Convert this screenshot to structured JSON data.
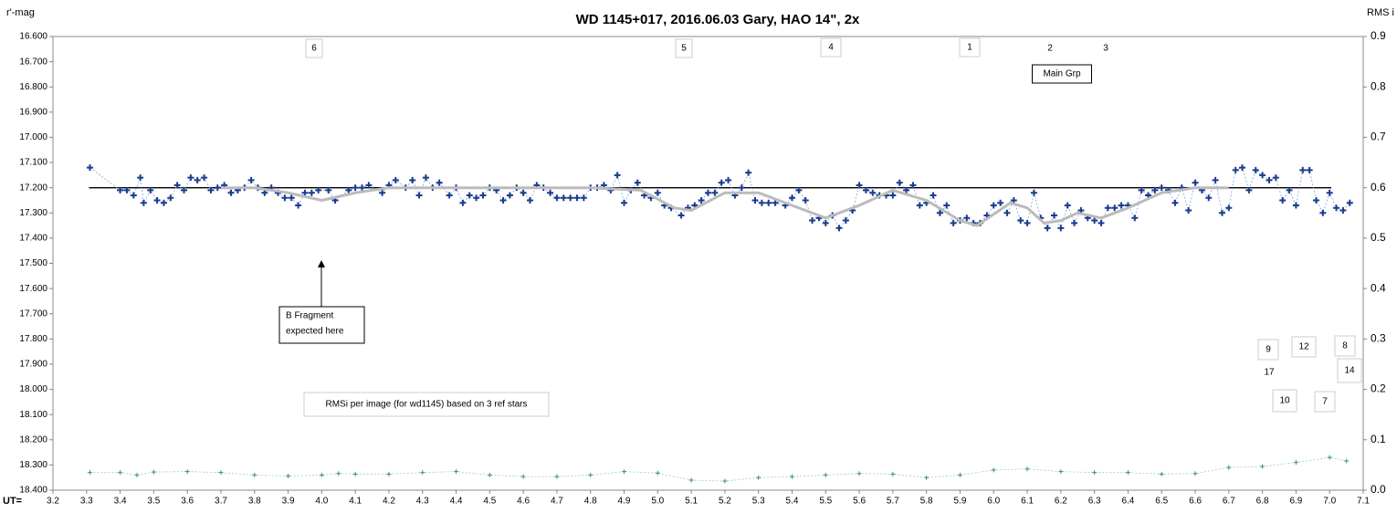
{
  "chart_data": {
    "type": "scatter",
    "title": "WD 1145+017,  2016.06.03  Gary, HAO  14\", 2x",
    "y_label": "r'-mag",
    "y2_label": "RMS i",
    "x_label": "UT=",
    "xlim": [
      3.2,
      7.1
    ],
    "xticks": [
      3.2,
      3.3,
      3.4,
      3.5,
      3.6,
      3.7,
      3.8,
      3.9,
      {
        "value": 4,
        "label": "4.0"
      },
      4.1,
      4.2,
      4.3,
      4.4,
      4.5,
      4.6,
      4.7,
      4.8,
      4.9,
      {
        "value": 5,
        "label": "5.0"
      },
      5.1,
      5.2,
      5.3,
      5.4,
      5.5,
      5.6,
      5.7,
      5.8,
      5.9,
      {
        "value": 6,
        "label": "6.0"
      },
      6.1,
      6.2,
      6.3,
      6.4,
      6.5,
      6.6,
      6.7,
      6.8,
      6.9,
      {
        "value": 7,
        "label": "7.0"
      },
      7.1
    ],
    "ylim": [
      16.6,
      18.4
    ],
    "y_inverted": true,
    "yticks": [
      {
        "value": 16.6,
        "label": "16.600"
      },
      {
        "value": 16.7,
        "label": "16.700"
      },
      {
        "value": 16.8,
        "label": "16.800"
      },
      {
        "value": 16.9,
        "label": "16.900"
      },
      {
        "value": 17.0,
        "label": "17.000"
      },
      {
        "value": 17.1,
        "label": "17.100"
      },
      {
        "value": 17.2,
        "label": "17.200"
      },
      {
        "value": 17.3,
        "label": "17.300"
      },
      {
        "value": 17.4,
        "label": "17.400"
      },
      {
        "value": 17.5,
        "label": "17.500"
      },
      {
        "value": 17.6,
        "label": "17.600"
      },
      {
        "value": 17.7,
        "label": "17.700"
      },
      {
        "value": 17.8,
        "label": "17.800"
      },
      {
        "value": 17.9,
        "label": "17.900"
      },
      {
        "value": 18.0,
        "label": "18.000"
      },
      {
        "value": 18.1,
        "label": "18.100"
      },
      {
        "value": 18.2,
        "label": "18.200"
      },
      {
        "value": 18.3,
        "label": "18.300"
      },
      {
        "value": 18.4,
        "label": "18.400"
      }
    ],
    "y2lim": [
      0,
      0.9
    ],
    "y2ticks": [
      {
        "value": 0,
        "label": "0.0"
      },
      0.1,
      0.2,
      0.3,
      0.4,
      0.5,
      0.6,
      0.7,
      0.8,
      0.9
    ],
    "reference_line": 17.2,
    "series": [
      {
        "color": "#1a3c8f",
        "style": "markers",
        "x": [
          3.31,
          3.4,
          3.42,
          3.44,
          3.46,
          3.47,
          3.49,
          3.51,
          3.53,
          3.55,
          3.57,
          3.59,
          3.61,
          3.63,
          3.65,
          3.67,
          3.69,
          3.71,
          3.73,
          3.75,
          3.77,
          3.79,
          3.81,
          3.83,
          3.85,
          3.87,
          3.89,
          3.91,
          3.93,
          3.95,
          3.97,
          3.99,
          4.02,
          4.04,
          4.08,
          4.1,
          4.12,
          4.14,
          4.18,
          4.2,
          4.22,
          4.25,
          4.27,
          4.29,
          4.31,
          4.33,
          4.35,
          4.38,
          4.4,
          4.42,
          4.44,
          4.46,
          4.48,
          4.5,
          4.52,
          4.54,
          4.56,
          4.58,
          4.6,
          4.62,
          4.64,
          4.66,
          4.68,
          4.7,
          4.72,
          4.74,
          4.76,
          4.78,
          4.8,
          4.82,
          4.84,
          4.86,
          4.88,
          4.9,
          4.92,
          4.94,
          4.96,
          4.98,
          5.0,
          5.02,
          5.04,
          5.07,
          5.09,
          5.11,
          5.13,
          5.15,
          5.17,
          5.19,
          5.21,
          5.23,
          5.25,
          5.27,
          5.29,
          5.31,
          5.33,
          5.35,
          5.38,
          5.4,
          5.42,
          5.44,
          5.46,
          5.48,
          5.5,
          5.52,
          5.54,
          5.56,
          5.58,
          5.6,
          5.62,
          5.64,
          5.66,
          5.68,
          5.7,
          5.72,
          5.74,
          5.76,
          5.78,
          5.8,
          5.82,
          5.84,
          5.86,
          5.88,
          5.9,
          5.92,
          5.94,
          5.96,
          5.98,
          6.0,
          6.02,
          6.04,
          6.06,
          6.08,
          6.1,
          6.12,
          6.14,
          6.16,
          6.18,
          6.2,
          6.22,
          6.24,
          6.26,
          6.28,
          6.3,
          6.32,
          6.34,
          6.36,
          6.38,
          6.4,
          6.42,
          6.44,
          6.46,
          6.48,
          6.5,
          6.52,
          6.54,
          6.56,
          6.58,
          6.6,
          6.62,
          6.64,
          6.66,
          6.68,
          6.7,
          6.72,
          6.74,
          6.76,
          6.78,
          6.8,
          6.82,
          6.84,
          6.86,
          6.88,
          6.9,
          6.92,
          6.94,
          6.96,
          6.98,
          7.0,
          7.02,
          7.04,
          7.06
        ],
        "values": [
          17.12,
          17.21,
          17.21,
          17.23,
          17.16,
          17.26,
          17.21,
          17.25,
          17.26,
          17.24,
          17.19,
          17.21,
          17.16,
          17.17,
          17.16,
          17.21,
          17.2,
          17.19,
          17.22,
          17.21,
          17.2,
          17.17,
          17.2,
          17.22,
          17.2,
          17.22,
          17.24,
          17.24,
          17.27,
          17.22,
          17.22,
          17.21,
          17.21,
          17.25,
          17.21,
          17.2,
          17.2,
          17.19,
          17.22,
          17.19,
          17.17,
          17.2,
          17.17,
          17.23,
          17.16,
          17.2,
          17.18,
          17.23,
          17.2,
          17.26,
          17.23,
          17.24,
          17.23,
          17.2,
          17.21,
          17.25,
          17.23,
          17.2,
          17.22,
          17.25,
          17.19,
          17.2,
          17.22,
          17.24,
          17.24,
          17.24,
          17.24,
          17.24,
          17.2,
          17.2,
          17.19,
          17.21,
          17.15,
          17.26,
          17.21,
          17.18,
          17.23,
          17.24,
          17.22,
          17.27,
          17.28,
          17.31,
          17.28,
          17.27,
          17.25,
          17.22,
          17.22,
          17.18,
          17.17,
          17.23,
          17.2,
          17.14,
          17.25,
          17.26,
          17.26,
          17.26,
          17.27,
          17.24,
          17.21,
          17.25,
          17.33,
          17.32,
          17.34,
          17.31,
          17.36,
          17.33,
          17.29,
          17.19,
          17.21,
          17.22,
          17.23,
          17.23,
          17.23,
          17.18,
          17.21,
          17.19,
          17.27,
          17.26,
          17.23,
          17.3,
          17.27,
          17.34,
          17.33,
          17.32,
          17.34,
          17.34,
          17.31,
          17.27,
          17.26,
          17.3,
          17.25,
          17.33,
          17.34,
          17.22,
          17.32,
          17.36,
          17.31,
          17.36,
          17.27,
          17.34,
          17.29,
          17.32,
          17.33,
          17.34,
          17.28,
          17.28,
          17.27,
          17.27,
          17.32,
          17.21,
          17.23,
          17.21,
          17.2,
          17.21,
          17.26,
          17.2,
          17.29,
          17.18,
          17.21,
          17.24,
          17.17,
          17.3,
          17.28,
          17.13,
          17.12,
          17.21,
          17.13,
          17.15,
          17.17,
          17.16,
          17.25,
          17.21,
          17.27,
          17.13,
          17.13,
          17.25,
          17.3,
          17.22,
          17.28,
          17.29,
          17.26
        ]
      },
      {
        "color": "#bbbbbb",
        "style": "curve",
        "x": [
          3.7,
          3.8,
          3.9,
          4.0,
          4.1,
          4.2,
          4.4,
          4.6,
          4.8,
          4.95,
          5.05,
          5.1,
          5.2,
          5.3,
          5.4,
          5.5,
          5.6,
          5.7,
          5.8,
          5.9,
          5.95,
          6.05,
          6.1,
          6.15,
          6.2,
          6.25,
          6.32,
          6.4,
          6.5,
          6.6,
          6.7
        ],
        "values": [
          17.2,
          17.2,
          17.22,
          17.25,
          17.22,
          17.2,
          17.2,
          17.2,
          17.2,
          17.21,
          17.28,
          17.29,
          17.22,
          17.22,
          17.27,
          17.32,
          17.27,
          17.21,
          17.25,
          17.33,
          17.35,
          17.26,
          17.28,
          17.34,
          17.33,
          17.3,
          17.32,
          17.28,
          17.22,
          17.2,
          17.2
        ]
      },
      {
        "color": "#3d8a8a",
        "style": "small-markers",
        "axis": "y2",
        "x": [
          3.31,
          3.4,
          3.45,
          3.5,
          3.6,
          3.7,
          3.8,
          3.9,
          4.0,
          4.05,
          4.1,
          4.2,
          4.3,
          4.4,
          4.5,
          4.6,
          4.7,
          4.8,
          4.9,
          5.0,
          5.1,
          5.2,
          5.3,
          5.4,
          5.5,
          5.6,
          5.7,
          5.8,
          5.9,
          6.0,
          6.1,
          6.2,
          6.3,
          6.4,
          6.5,
          6.6,
          6.7,
          6.8,
          6.9,
          7.0,
          7.05
        ],
        "values": [
          0.035,
          0.035,
          0.03,
          0.036,
          0.037,
          0.035,
          0.03,
          0.028,
          0.03,
          0.033,
          0.032,
          0.032,
          0.035,
          0.037,
          0.03,
          0.027,
          0.027,
          0.03,
          0.037,
          0.034,
          0.02,
          0.018,
          0.025,
          0.027,
          0.03,
          0.033,
          0.032,
          0.025,
          0.03,
          0.04,
          0.042,
          0.037,
          0.035,
          0.035,
          0.032,
          0.033,
          0.045,
          0.047,
          0.055,
          0.065,
          0.058
        ]
      }
    ],
    "annotations": [
      "6",
      "5",
      "4",
      "1",
      "2",
      "3",
      "Main Grp",
      "B Fragment",
      "expected here",
      "RMSi per image (for wd1145) based on 3 ref stars",
      "9",
      "12",
      "8",
      "17",
      "14",
      "10",
      "7"
    ]
  }
}
